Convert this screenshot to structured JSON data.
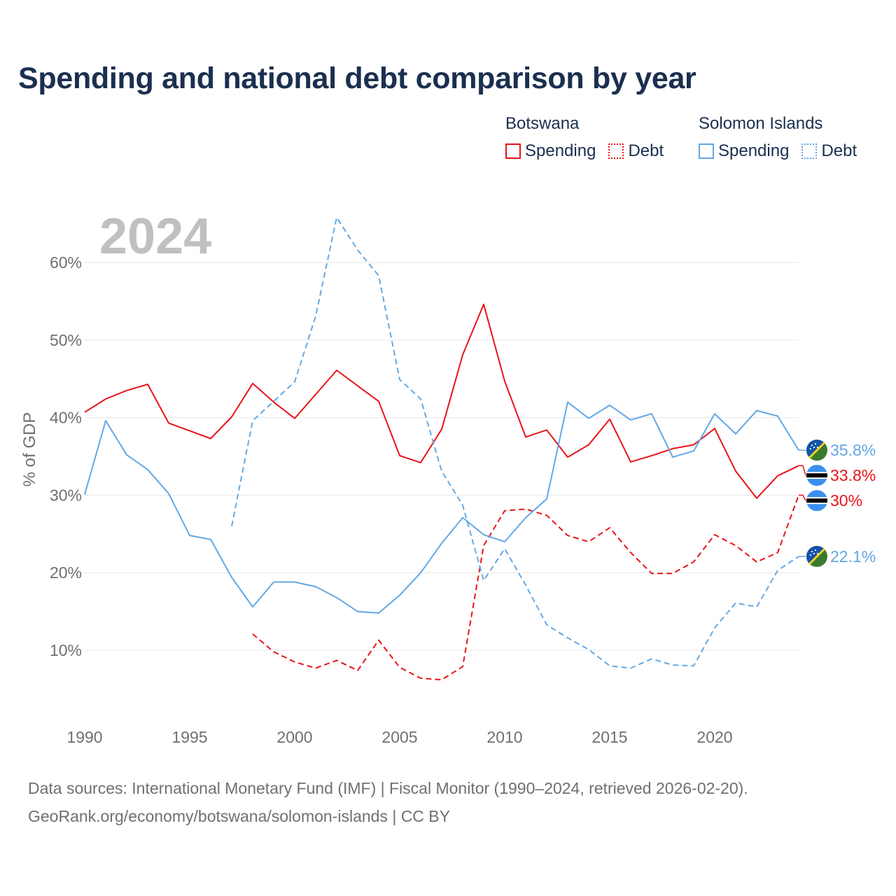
{
  "title": "Spending and national debt comparison by year",
  "legend": {
    "groups": [
      {
        "name": "Botswana",
        "spending_label": "Spending",
        "debt_label": "Debt",
        "color": "#e8141a"
      },
      {
        "name": "Solomon Islands",
        "spending_label": "Spending",
        "debt_label": "Debt",
        "color": "#62a8e5"
      }
    ]
  },
  "year_label": "2024",
  "footer": {
    "line1": "Data sources: International Monetary Fund (IMF) | Fiscal Monitor (1990–2024, retrieved 2026-02-20).",
    "line2": "GeoRank.org/economy/botswana/solomon-islands | CC BY"
  },
  "colors": {
    "botswana": "#e8141a",
    "solomon": "#62a8e5",
    "grid": "#e6e6e6",
    "tick": "#707070"
  },
  "chart_data": {
    "type": "line",
    "title": "Spending and national debt comparison by year",
    "xlabel": "",
    "ylabel": "% of GDP",
    "xlim": [
      1990,
      2024
    ],
    "ylim": [
      3,
      68
    ],
    "xticks": [
      1990,
      1995,
      2000,
      2005,
      2010,
      2015,
      2020
    ],
    "xtick_labels": [
      "1990",
      "1995",
      "2000",
      "2005",
      "2010",
      "2015",
      "2020"
    ],
    "yticks": [
      10,
      20,
      30,
      40,
      50,
      60
    ],
    "ytick_labels": [
      "10%",
      "20%",
      "30%",
      "40%",
      "50%",
      "60%"
    ],
    "grid": true,
    "series": [
      {
        "name": "Botswana Spending",
        "country": "Botswana",
        "metric": "Spending",
        "color": "#e8141a",
        "dashed": false,
        "x": [
          1990,
          1991,
          1992,
          1993,
          1994,
          1995,
          1996,
          1997,
          1998,
          1999,
          2000,
          2001,
          2002,
          2003,
          2004,
          2005,
          2006,
          2007,
          2008,
          2009,
          2010,
          2011,
          2012,
          2013,
          2014,
          2015,
          2016,
          2017,
          2018,
          2019,
          2020,
          2021,
          2022,
          2023,
          2024
        ],
        "y": [
          40.7,
          42.4,
          43.5,
          44.3,
          39.3,
          38.3,
          37.3,
          40.1,
          44.4,
          42.0,
          39.9,
          43.0,
          46.1,
          44.1,
          42.1,
          35.1,
          34.2,
          38.5,
          48.1,
          54.6,
          44.7,
          37.5,
          38.4,
          34.9,
          36.5,
          39.8,
          34.3,
          35.1,
          36.0,
          36.5,
          38.6,
          33.1,
          29.6,
          32.5,
          33.8
        ],
        "end_label": "33.8%"
      },
      {
        "name": "Botswana Debt",
        "country": "Botswana",
        "metric": "Debt",
        "color": "#e8141a",
        "dashed": true,
        "x": [
          1998,
          1999,
          2000,
          2001,
          2002,
          2003,
          2004,
          2005,
          2006,
          2007,
          2008,
          2009,
          2010,
          2011,
          2012,
          2013,
          2014,
          2015,
          2016,
          2017,
          2018,
          2019,
          2020,
          2021,
          2022,
          2023,
          2024
        ],
        "y": [
          12.1,
          9.8,
          8.5,
          7.7,
          8.7,
          7.4,
          11.3,
          7.8,
          6.4,
          6.2,
          7.9,
          23.5,
          28.0,
          28.2,
          27.4,
          24.8,
          24.0,
          25.8,
          22.6,
          19.9,
          19.9,
          21.4,
          24.9,
          23.5,
          21.4,
          22.6,
          30.0
        ],
        "end_label": "30%"
      },
      {
        "name": "Solomon Islands Spending",
        "country": "Solomon Islands",
        "metric": "Spending",
        "color": "#62a8e5",
        "dashed": false,
        "x": [
          1990,
          1991,
          1992,
          1993,
          1994,
          1995,
          1996,
          1997,
          1998,
          1999,
          2000,
          2001,
          2002,
          2003,
          2004,
          2005,
          2006,
          2007,
          2008,
          2009,
          2010,
          2011,
          2012,
          2013,
          2014,
          2015,
          2016,
          2017,
          2018,
          2019,
          2020,
          2021,
          2022,
          2023,
          2024
        ],
        "y": [
          30.1,
          39.6,
          35.2,
          33.3,
          30.2,
          24.8,
          24.3,
          19.4,
          15.6,
          18.8,
          18.8,
          18.2,
          16.8,
          15.0,
          14.8,
          17.1,
          20.0,
          23.8,
          27.1,
          24.9,
          24.0,
          27.1,
          29.5,
          42.0,
          39.9,
          41.6,
          39.7,
          40.5,
          34.9,
          35.7,
          40.5,
          37.9,
          40.9,
          40.2,
          35.8
        ],
        "end_label": "35.8%"
      },
      {
        "name": "Solomon Islands Debt",
        "country": "Solomon Islands",
        "metric": "Debt",
        "color": "#62a8e5",
        "dashed": true,
        "x": [
          1997,
          1998,
          1999,
          2000,
          2001,
          2002,
          2003,
          2004,
          2005,
          2006,
          2007,
          2008,
          2009,
          2010,
          2011,
          2012,
          2013,
          2014,
          2015,
          2016,
          2017,
          2018,
          2019,
          2020,
          2021,
          2022,
          2023,
          2024
        ],
        "y": [
          26.0,
          39.6,
          42.1,
          44.6,
          53.1,
          65.8,
          61.6,
          58.3,
          44.9,
          42.4,
          33.1,
          28.7,
          19.0,
          23.1,
          18.4,
          13.3,
          11.6,
          10.1,
          8.0,
          7.7,
          8.9,
          8.1,
          8.0,
          12.9,
          16.1,
          15.6,
          20.3,
          22.1
        ],
        "end_label": "22.1%"
      }
    ]
  }
}
